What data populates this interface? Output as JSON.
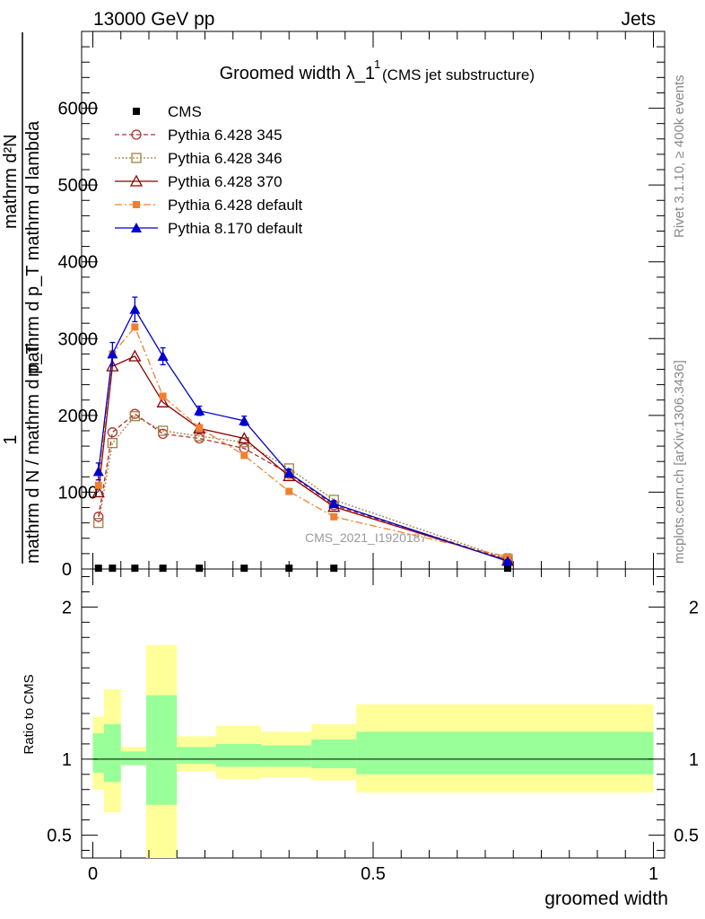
{
  "header": {
    "energy_label": "13000 GeV pp",
    "process_label": "Jets",
    "rivet_label": "Rivet 3.1.10, ≥ 400k events",
    "mcplots_label": "mcplots.cern.ch [arXiv:1306.3436]",
    "watermark": "CMS_2021_I1920187"
  },
  "chart_data": [
    {
      "panel": "main",
      "type": "line",
      "title_main": "Groomed width",
      "title_symbol": "λ_1",
      "title_superscript": "1",
      "title_sub": "(CMS jet substructure)",
      "ylabel_numerator": "mathrm d²N",
      "ylabel_denominator": "mathrm d p_T mathrm d lambda",
      "ylabel_prefix_num": "1",
      "ylabel_prefix_den": "mathrm d N / mathrm d p_T",
      "xlim": [
        -0.02,
        1.02
      ],
      "ylim": [
        0,
        7000
      ],
      "y_ticks": [
        1000,
        2000,
        3000,
        4000,
        5000,
        6000
      ],
      "y_tick_labels": [
        "1000",
        "2000",
        "3000",
        "4000",
        "5000",
        "6000"
      ],
      "y_tick_label_zero": "0",
      "x": [
        0.01,
        0.035,
        0.075,
        0.125,
        0.19,
        0.27,
        0.35,
        0.43,
        0.74
      ],
      "series": [
        {
          "name": "CMS",
          "color": "#000000",
          "marker": "square-filled",
          "line": "none",
          "values": [
            10,
            10,
            10,
            10,
            10,
            10,
            10,
            10,
            10
          ]
        },
        {
          "name": "Pythia 6.428 345",
          "color": "#b03030",
          "marker": "circle-open",
          "line": "dashed",
          "values": [
            680,
            1780,
            2020,
            1760,
            1700,
            1570,
            1240,
            830,
            120
          ]
        },
        {
          "name": "Pythia 6.428 346",
          "color": "#a08040",
          "marker": "square-open",
          "line": "dotted",
          "values": [
            600,
            1640,
            1990,
            1800,
            1730,
            1650,
            1310,
            900,
            130
          ]
        },
        {
          "name": "Pythia 6.428 370",
          "color": "#8b0000",
          "marker": "triangle-open",
          "line": "solid",
          "values": [
            1000,
            2640,
            2770,
            2170,
            1830,
            1700,
            1210,
            810,
            110
          ]
        },
        {
          "name": "Pythia 6.428 default",
          "color": "#f08030",
          "marker": "square-filled",
          "line": "dashdot",
          "values": [
            1090,
            2800,
            3150,
            2250,
            1840,
            1480,
            1010,
            680,
            160
          ]
        },
        {
          "name": "Pythia 8.170 default",
          "color": "#0000cc",
          "marker": "triangle-filled",
          "line": "solid",
          "values": [
            1270,
            2800,
            3380,
            2770,
            2060,
            1930,
            1250,
            850,
            100
          ],
          "errors": [
            110,
            150,
            160,
            110,
            60,
            60,
            50,
            40,
            20
          ]
        }
      ],
      "legend_placement": "top-left"
    },
    {
      "panel": "ratio",
      "type": "area",
      "ylabel": "Ratio to CMS",
      "xlabel": "groomed width",
      "xlim": [
        -0.02,
        1.02
      ],
      "ylim": [
        0.35,
        2.25
      ],
      "y_ticks": [
        0.5,
        1,
        2
      ],
      "y_tick_labels": [
        "0.5",
        "1",
        "2"
      ],
      "x_ticks": [
        0,
        0.5,
        1
      ],
      "x_tick_labels": [
        "0",
        "0.5",
        "1"
      ],
      "reference_line": 1,
      "bins": [
        {
          "x0": 0.0,
          "x1": 0.02,
          "yellow": [
            0.8,
            1.28
          ],
          "green": [
            0.91,
            1.17
          ]
        },
        {
          "x0": 0.02,
          "x1": 0.05,
          "yellow": [
            0.65,
            1.46
          ],
          "green": [
            0.85,
            1.23
          ]
        },
        {
          "x0": 0.05,
          "x1": 0.095,
          "yellow": [
            0.96,
            1.08
          ],
          "green": [
            0.96,
            1.05
          ]
        },
        {
          "x0": 0.095,
          "x1": 0.15,
          "yellow": [
            0.35,
            1.75
          ],
          "green": [
            0.7,
            1.42
          ]
        },
        {
          "x0": 0.15,
          "x1": 0.22,
          "yellow": [
            0.92,
            1.15
          ],
          "green": [
            0.97,
            1.08
          ]
        },
        {
          "x0": 0.22,
          "x1": 0.3,
          "yellow": [
            0.87,
            1.22
          ],
          "green": [
            0.95,
            1.1
          ]
        },
        {
          "x0": 0.3,
          "x1": 0.39,
          "yellow": [
            0.88,
            1.18
          ],
          "green": [
            0.95,
            1.09
          ]
        },
        {
          "x0": 0.39,
          "x1": 0.47,
          "yellow": [
            0.86,
            1.23
          ],
          "green": [
            0.94,
            1.13
          ]
        },
        {
          "x0": 0.47,
          "x1": 1.0,
          "yellow": [
            0.78,
            1.36
          ],
          "green": [
            0.9,
            1.18
          ]
        }
      ],
      "colors": {
        "yellow": "#ffff99",
        "green": "#99ff99"
      }
    }
  ]
}
